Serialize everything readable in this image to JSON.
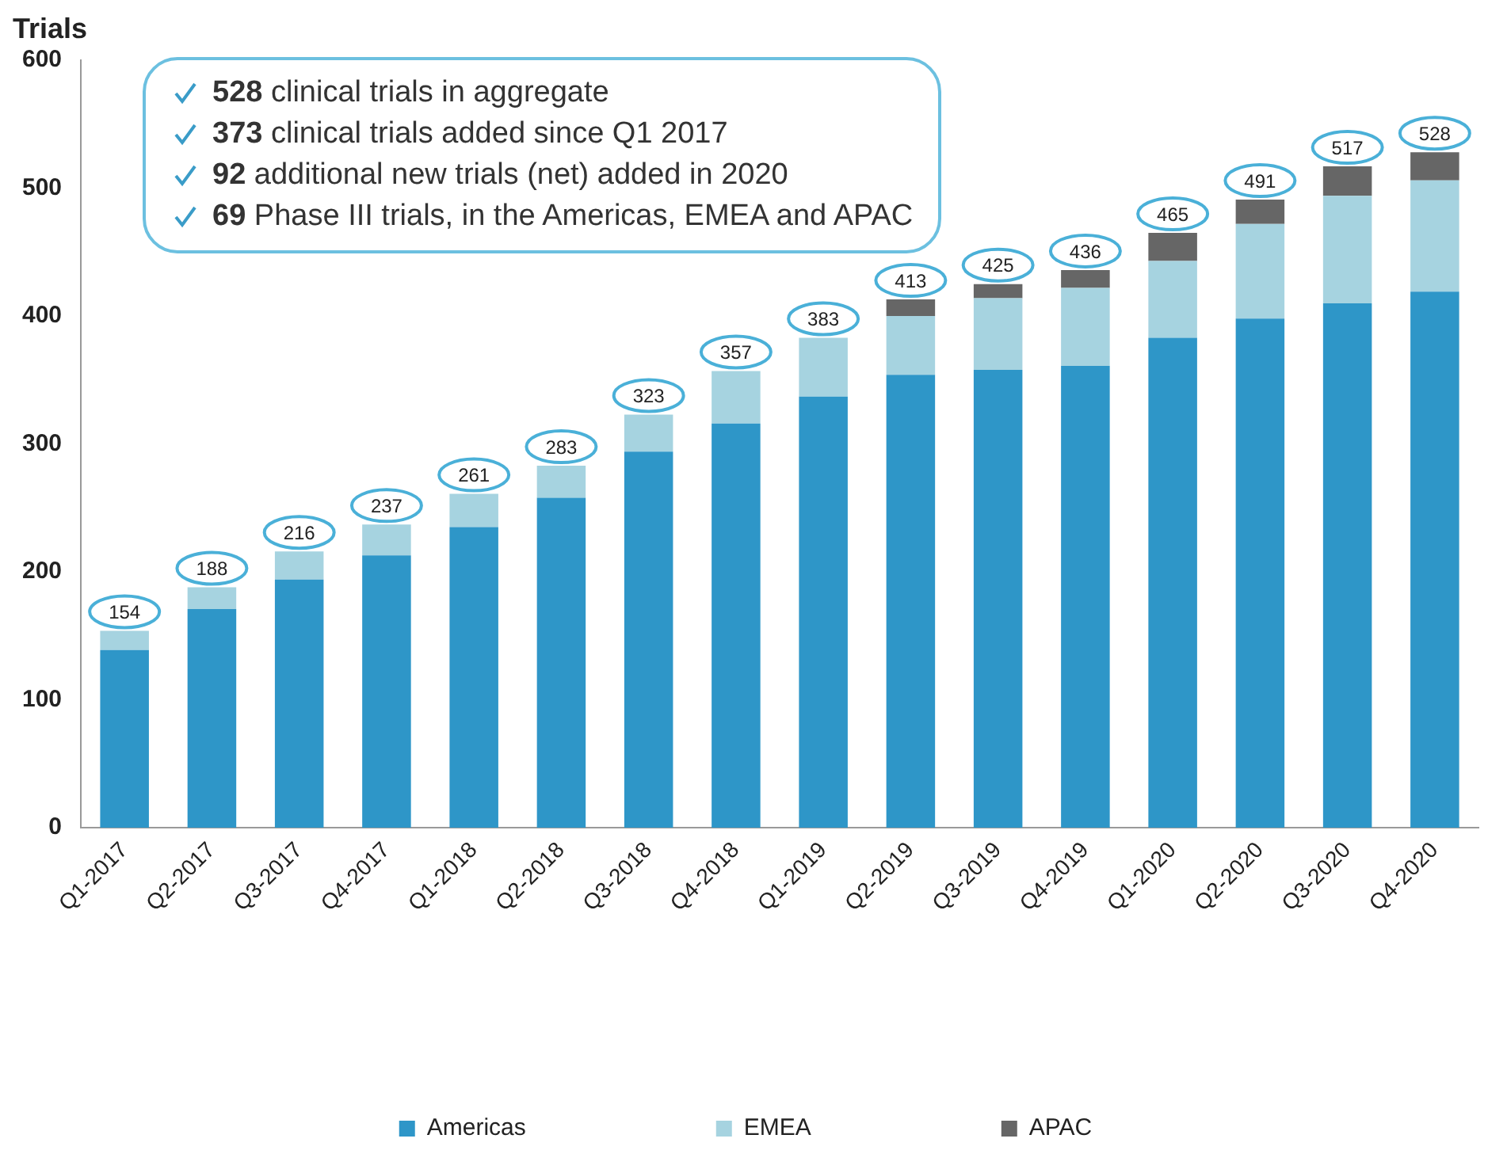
{
  "chart_data": {
    "type": "bar",
    "stacked": true,
    "ylabel": "Trials",
    "categories": [
      "Q1-2017",
      "Q2-2017",
      "Q3-2017",
      "Q4-2017",
      "Q1-2018",
      "Q2-2018",
      "Q3-2018",
      "Q4-2018",
      "Q1-2019",
      "Q2-2019",
      "Q3-2019",
      "Q4-2019",
      "Q1-2020",
      "Q2-2020",
      "Q3-2020",
      "Q4-2020"
    ],
    "series": [
      {
        "name": "Americas",
        "color": "#2e96c8",
        "values": [
          139,
          171,
          194,
          213,
          235,
          258,
          294,
          316,
          337,
          354,
          358,
          361,
          383,
          398,
          410,
          419
        ]
      },
      {
        "name": "EMEA",
        "color": "#a6d3e0",
        "values": [
          15,
          17,
          22,
          24,
          26,
          25,
          29,
          41,
          46,
          46,
          56,
          61,
          60,
          74,
          84,
          87
        ]
      },
      {
        "name": "APAC",
        "color": "#666666",
        "values": [
          0,
          0,
          0,
          0,
          0,
          0,
          0,
          0,
          0,
          13,
          11,
          14,
          22,
          19,
          23,
          22
        ]
      }
    ],
    "totals": [
      "154",
      "188",
      "216",
      "237",
      "261",
      "283",
      "323",
      "357",
      "383",
      "413",
      "425",
      "436",
      "465",
      "491",
      "517",
      "528"
    ],
    "ylim": [
      0,
      600
    ],
    "yticks": [
      0,
      100,
      200,
      300,
      400,
      500,
      600
    ],
    "grid": false,
    "legend": "bottom",
    "annotations": [
      "528 clinical trials in aggregate",
      "373 clinical trials added since Q1 2017",
      "92 additional new trials (net) added in 2020",
      "69 Phase III trials, in the Americas, EMEA and APAC"
    ]
  }
}
